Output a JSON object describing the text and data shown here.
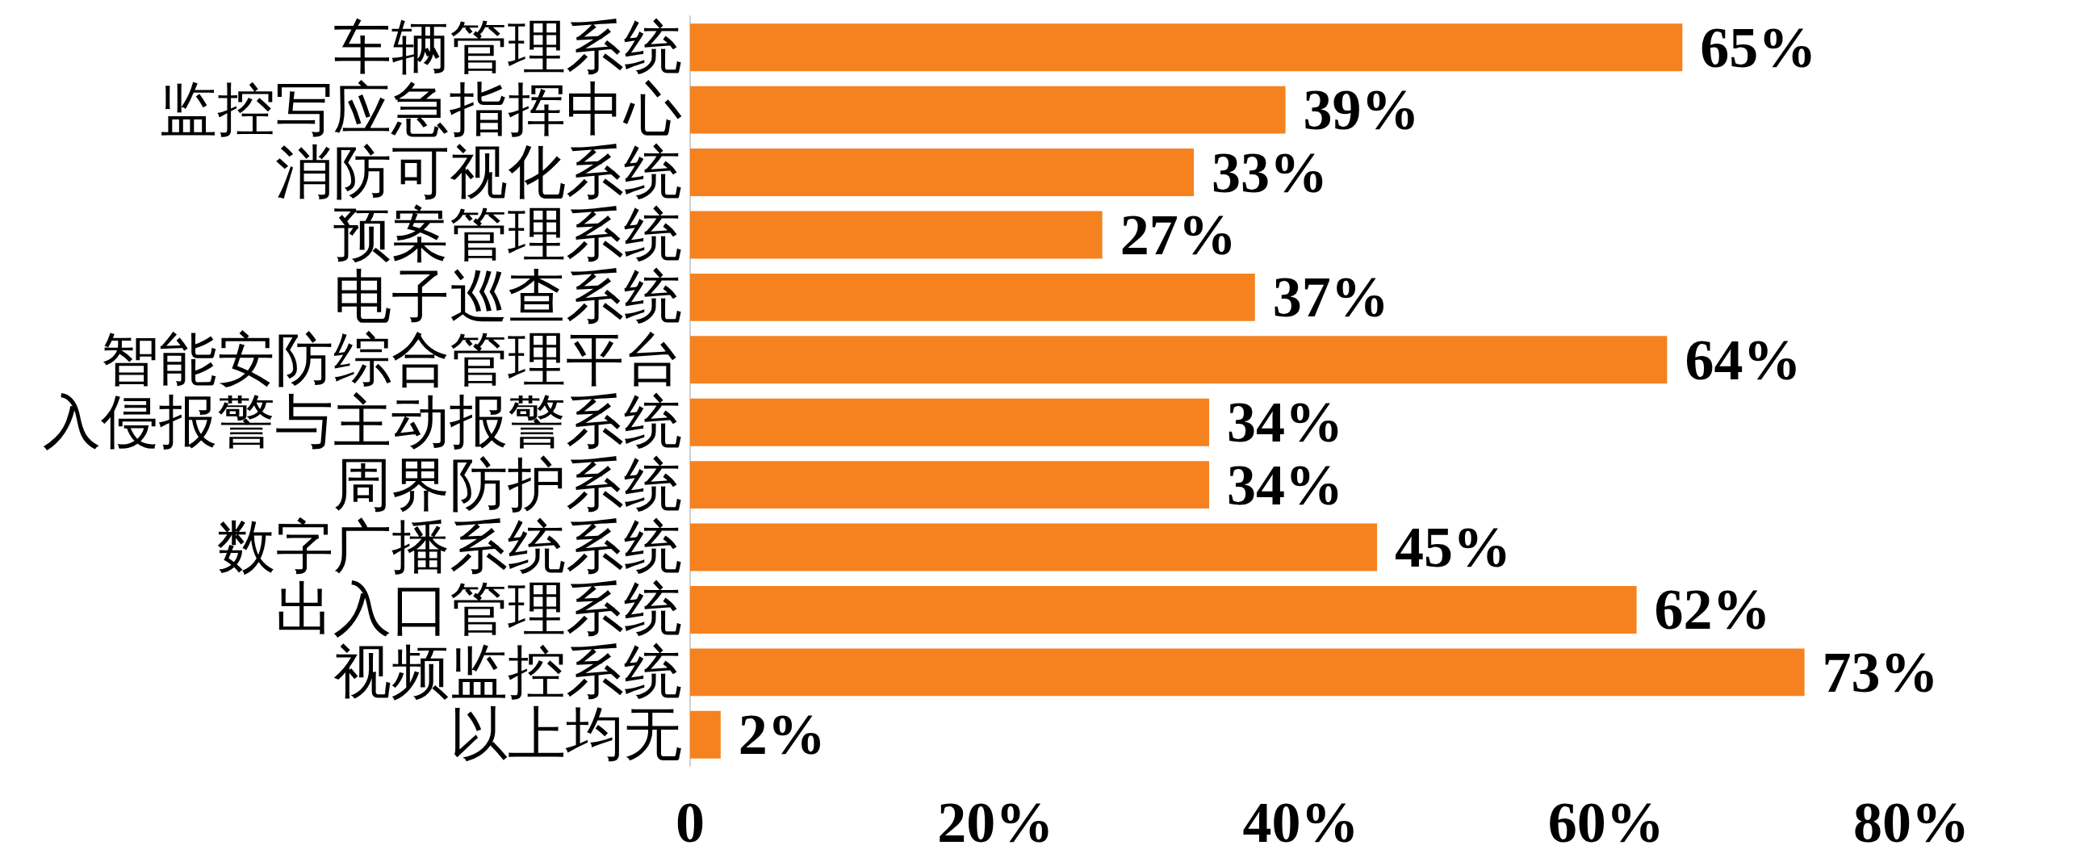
{
  "chart_data": {
    "type": "bar",
    "orientation": "horizontal",
    "categories": [
      "车辆管理系统",
      "监控写应急指挥中心",
      "消防可视化系统",
      "预案管理系统",
      "电子巡查系统",
      "智能安防综合管理平台",
      "入侵报警与主动报警系统",
      "周界防护系统",
      "数字广播系统系统",
      "出入口管理系统",
      "视频监控系统",
      "以上均无"
    ],
    "values": [
      65,
      39,
      33,
      27,
      37,
      64,
      34,
      34,
      45,
      62,
      73,
      2
    ],
    "value_labels": [
      "65%",
      "39%",
      "33%",
      "27%",
      "37%",
      "64%",
      "34%",
      "34%",
      "45%",
      "62%",
      "73%",
      "2%"
    ],
    "color": "#f5821f",
    "xlim": [
      0,
      80
    ],
    "xticks": [
      0,
      {
        "value": 20,
        "label": "20%"
      },
      {
        "value": 40,
        "label": "40%"
      },
      {
        "value": 60,
        "label": "60%"
      },
      {
        "value": 80,
        "label": "80%"
      }
    ]
  }
}
